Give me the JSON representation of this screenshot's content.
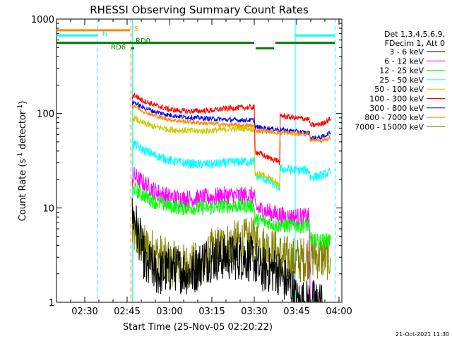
{
  "chart_data": {
    "type": "line",
    "title": "RHESSI Observing Summary Count Rates",
    "xlabel": "Start Time (25-Nov-05 02:20:22)",
    "ylabel_main": "Count Rate (s",
    "ylabel_sup1": "-1",
    "ylabel_mid": " detector",
    "ylabel_sup2": "-1",
    "ylabel_end": ")",
    "x_unit": "minutes since 02:20",
    "xlim": [
      0,
      101
    ],
    "ylim": [
      1,
      1000
    ],
    "y_scale": "log",
    "x_ticks": [
      {
        "x": 10,
        "label": "02:30"
      },
      {
        "x": 25,
        "label": "02:45"
      },
      {
        "x": 40,
        "label": "03:00"
      },
      {
        "x": 55,
        "label": "03:15"
      },
      {
        "x": 70,
        "label": "03:30"
      },
      {
        "x": 85,
        "label": "03:45"
      },
      {
        "x": 100,
        "label": "04:00"
      }
    ],
    "y_ticks": [
      {
        "y": 1,
        "label": "1"
      },
      {
        "y": 10,
        "label": "10"
      },
      {
        "y": 100,
        "label": "100"
      },
      {
        "y": 1000,
        "label": "1000"
      }
    ],
    "legend": {
      "placement": "right",
      "header": [
        "Det 1,3,4,5,6,9,",
        "FDecim 1, Att 0"
      ],
      "entries": [
        {
          "label": "3 - 6 keV",
          "color": "#000000"
        },
        {
          "label": "6 - 12 keV",
          "color": "#ff00ff"
        },
        {
          "label": "12 - 25 keV",
          "color": "#00ff00"
        },
        {
          "label": "25 - 50 keV",
          "color": "#00ffff"
        },
        {
          "label": "50 - 100 keV",
          "color": "#cccc00"
        },
        {
          "label": "100 - 300 keV",
          "color": "#ff0000"
        },
        {
          "label": "300 - 800 keV",
          "color": "#0000ff"
        },
        {
          "label": "800 - 7000 keV",
          "color": "#ff8800"
        },
        {
          "label": "7000 - 15000 keV",
          "color": "#808000"
        }
      ]
    },
    "flags": [
      {
        "label": "S",
        "color": "#ff8800",
        "y": 760,
        "segments": [
          [
            0,
            26
          ]
        ]
      },
      {
        "label": "N",
        "color": "#00ffff",
        "y": 670,
        "segments": [
          [
            0,
            14.5
          ],
          [
            84.5,
            98.5
          ]
        ]
      },
      {
        "label": "RD0",
        "color": "#008000",
        "y": 560,
        "segments": [
          [
            0,
            70
          ],
          [
            77.5,
            98.5
          ]
        ]
      },
      {
        "label": "RD6",
        "color": "#008000",
        "y": 490,
        "segments": [
          [
            26.5,
            27.5
          ],
          [
            70.5,
            77
          ]
        ]
      }
    ],
    "vlines": [
      {
        "x": 14.5,
        "color": "#00ffff",
        "style": "dashed"
      },
      {
        "x": 26.3,
        "color": "#ff8800",
        "style": "dashed"
      },
      {
        "x": 26.9,
        "color": "#00ffff",
        "style": "solid"
      },
      {
        "x": 84.5,
        "color": "#00ffff",
        "style": "solid"
      },
      {
        "x": 98.6,
        "color": "#00ffff",
        "style": "dashed"
      }
    ],
    "series": [
      {
        "label": "3 - 6 keV",
        "color": "#000000",
        "noise": 0.25,
        "points": [
          [
            26.8,
            8
          ],
          [
            27.5,
            8
          ],
          [
            28.5,
            6
          ],
          [
            30,
            4
          ],
          [
            31,
            3
          ],
          [
            32,
            2
          ],
          [
            33,
            2.5
          ],
          [
            36,
            2
          ],
          [
            42,
            2.3
          ],
          [
            48,
            2
          ],
          [
            52,
            2.8
          ],
          [
            58,
            3
          ],
          [
            62,
            3
          ],
          [
            66,
            3
          ],
          [
            70,
            2.8
          ],
          [
            72,
            2.2
          ],
          [
            78,
            2.2
          ],
          [
            80,
            1.8
          ],
          [
            82,
            1.6
          ],
          [
            84,
            1.3
          ],
          [
            85,
            1
          ],
          [
            87,
            1
          ],
          [
            88,
            1
          ],
          [
            92,
            1
          ],
          [
            94,
            1
          ]
        ]
      },
      {
        "label": "6 - 12 keV",
        "color": "#ff00ff",
        "noise": 0.1,
        "points": [
          [
            26.8,
            20
          ],
          [
            27.5,
            22
          ],
          [
            30,
            19
          ],
          [
            35,
            15
          ],
          [
            40,
            13
          ],
          [
            45,
            12.5
          ],
          [
            50,
            12.5
          ],
          [
            55,
            13
          ],
          [
            60,
            13.5
          ],
          [
            65,
            13.5
          ],
          [
            70,
            13.5
          ],
          [
            70.3,
            10
          ],
          [
            75,
            9
          ],
          [
            78,
            8.5
          ],
          [
            82,
            8
          ],
          [
            86,
            8
          ],
          [
            89.5,
            8
          ],
          [
            89.8,
            1
          ]
        ]
      },
      {
        "label": "12 - 25 keV",
        "color": "#00ff00",
        "noise": 0.08,
        "points": [
          [
            26.8,
            15
          ],
          [
            27.5,
            16
          ],
          [
            30,
            14
          ],
          [
            35,
            11.5
          ],
          [
            40,
            10.5
          ],
          [
            45,
            10
          ],
          [
            50,
            10
          ],
          [
            55,
            10
          ],
          [
            60,
            10.5
          ],
          [
            65,
            10.5
          ],
          [
            70,
            10.5
          ],
          [
            70.3,
            7.5
          ],
          [
            75,
            7
          ],
          [
            78,
            6.5
          ],
          [
            82,
            6.5
          ],
          [
            86,
            6.5
          ],
          [
            89.5,
            6.5
          ],
          [
            89.8,
            4.5
          ],
          [
            94,
            4.5
          ],
          [
            97,
            4.5
          ]
        ]
      },
      {
        "label": "25 - 50 keV",
        "color": "#00ffff",
        "noise": 0.05,
        "points": [
          [
            26.8,
            45
          ],
          [
            27.5,
            48
          ],
          [
            30,
            42
          ],
          [
            35,
            36
          ],
          [
            40,
            32
          ],
          [
            45,
            30
          ],
          [
            50,
            29
          ],
          [
            55,
            29
          ],
          [
            60,
            30
          ],
          [
            65,
            31
          ],
          [
            70,
            31
          ],
          [
            70.3,
            22
          ],
          [
            74,
            20
          ],
          [
            78,
            17
          ],
          [
            79,
            16.5
          ],
          [
            79.2,
            26
          ],
          [
            84,
            25
          ],
          [
            86,
            25
          ],
          [
            89.5,
            25
          ],
          [
            89.8,
            21
          ],
          [
            94,
            22
          ],
          [
            97,
            24
          ]
        ]
      },
      {
        "label": "50 - 100 keV",
        "color": "#cccc00",
        "noise": 0.035,
        "points": [
          [
            26.8,
            85
          ],
          [
            27.5,
            90
          ],
          [
            30,
            80
          ],
          [
            35,
            72
          ],
          [
            40,
            68
          ],
          [
            45,
            66
          ],
          [
            50,
            65
          ],
          [
            55,
            66
          ],
          [
            60,
            68
          ],
          [
            65,
            70
          ],
          [
            70,
            69
          ],
          [
            70.3,
            23
          ],
          [
            74,
            22
          ],
          [
            76,
            20
          ],
          [
            78,
            18
          ],
          [
            79,
            17
          ],
          [
            79.2,
            50
          ]
        ]
      },
      {
        "label": "100 - 300 keV",
        "color": "#ff0000",
        "noise": 0.03,
        "points": [
          [
            26.8,
            150
          ],
          [
            27.5,
            158
          ],
          [
            30,
            140
          ],
          [
            35,
            122
          ],
          [
            40,
            110
          ],
          [
            45,
            106
          ],
          [
            50,
            106
          ],
          [
            55,
            108
          ],
          [
            60,
            113
          ],
          [
            65,
            115
          ],
          [
            70,
            116
          ],
          [
            70.3,
            40
          ],
          [
            74,
            35
          ],
          [
            76,
            33
          ],
          [
            78,
            32
          ],
          [
            79,
            30
          ],
          [
            79.2,
            95
          ],
          [
            84,
            90
          ],
          [
            88,
            88
          ],
          [
            89.5,
            86
          ],
          [
            89.8,
            74
          ],
          [
            94,
            78
          ],
          [
            97,
            88
          ]
        ]
      },
      {
        "label": "300 - 800 keV",
        "color": "#0000ff",
        "noise": 0.025,
        "points": [
          [
            26.8,
            128
          ],
          [
            27.5,
            132
          ],
          [
            30,
            118
          ],
          [
            35,
            104
          ],
          [
            40,
            96
          ],
          [
            45,
            92
          ],
          [
            50,
            90
          ],
          [
            55,
            88
          ],
          [
            60,
            86
          ],
          [
            65,
            85
          ],
          [
            70,
            85
          ],
          [
            70.3,
            72
          ],
          [
            74,
            70
          ],
          [
            78,
            68
          ],
          [
            82,
            66
          ],
          [
            86,
            64
          ],
          [
            89.5,
            62
          ],
          [
            89.8,
            55
          ],
          [
            94,
            56
          ],
          [
            97,
            63
          ]
        ]
      },
      {
        "label": "800 - 7000 keV",
        "color": "#ff8800",
        "noise": 0.025,
        "points": [
          [
            26.8,
            118
          ],
          [
            27.5,
            122
          ],
          [
            30,
            108
          ],
          [
            35,
            94
          ],
          [
            40,
            86
          ],
          [
            45,
            82
          ],
          [
            50,
            80
          ],
          [
            55,
            78
          ],
          [
            60,
            76
          ],
          [
            65,
            75
          ],
          [
            70,
            74
          ],
          [
            70.3,
            66
          ],
          [
            74,
            65
          ],
          [
            78,
            63
          ],
          [
            82,
            62
          ],
          [
            86,
            61
          ],
          [
            89.5,
            60
          ],
          [
            89.8,
            53
          ],
          [
            94,
            52
          ],
          [
            97,
            55
          ]
        ]
      },
      {
        "label": "7000 - 15000 keV",
        "color": "#808000",
        "noise": 0.25,
        "points": [
          [
            26.8,
            5.5
          ],
          [
            28,
            5
          ],
          [
            30,
            4
          ],
          [
            33,
            3.6
          ],
          [
            37,
            3
          ],
          [
            40,
            2.6
          ],
          [
            45,
            2.4
          ],
          [
            50,
            2.5
          ],
          [
            53,
            2.6
          ],
          [
            55,
            3.5
          ],
          [
            60,
            4
          ],
          [
            65,
            4.3
          ],
          [
            68,
            4.5
          ],
          [
            70,
            4.5
          ],
          [
            73,
            3.8
          ],
          [
            77,
            3.5
          ],
          [
            80,
            3
          ],
          [
            84,
            2.8
          ],
          [
            87,
            2.8
          ],
          [
            90,
            3.2
          ],
          [
            94,
            3
          ],
          [
            97,
            3
          ]
        ]
      }
    ]
  },
  "footer_date": "21-Oct-2021 11:30"
}
